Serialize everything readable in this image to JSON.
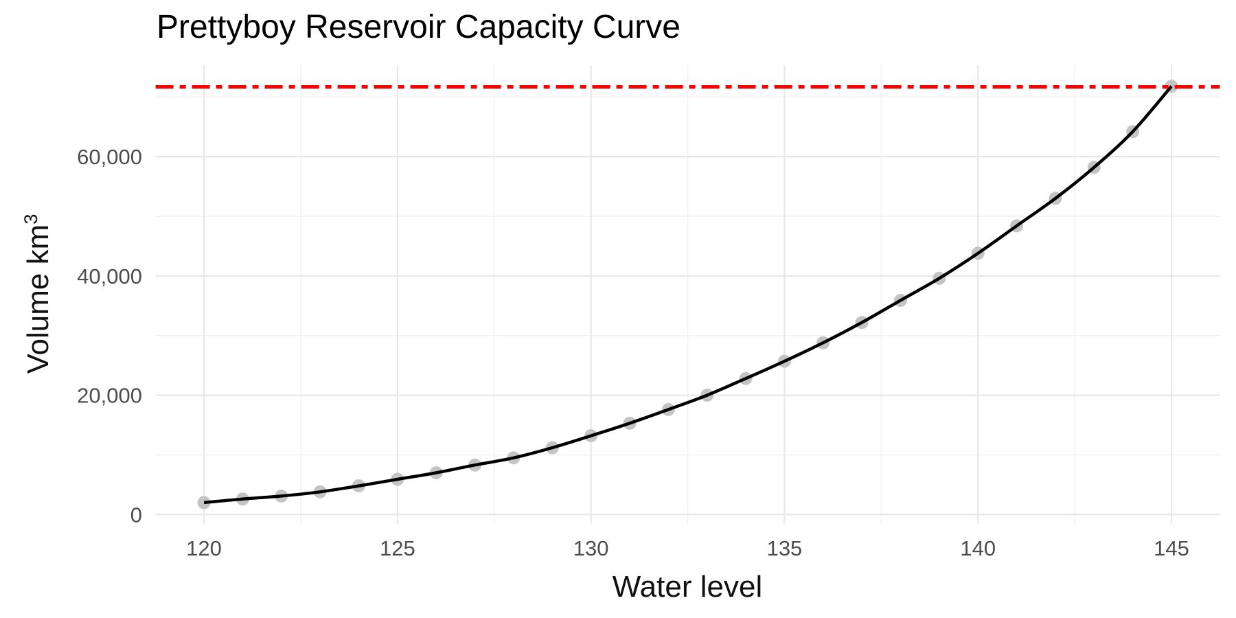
{
  "chart_data": {
    "type": "scatter",
    "title": "Prettyboy Reservoir Capacity Curve",
    "xlabel": "Water level",
    "ylabel": {
      "base": "Volume km",
      "exponent": "3"
    },
    "series": [
      {
        "name": "reservoir-volume-points",
        "x": [
          120,
          121,
          122,
          123,
          124,
          125,
          126,
          127,
          128,
          129,
          130,
          131,
          132,
          133,
          134,
          135,
          136,
          137,
          138,
          139,
          140,
          141,
          142,
          143,
          144,
          145
        ],
        "y": [
          2000,
          2600,
          3100,
          3800,
          4800,
          5900,
          7000,
          8300,
          9500,
          11200,
          13200,
          15300,
          17600,
          20000,
          22800,
          25700,
          28800,
          32200,
          35900,
          39600,
          43800,
          48400,
          53000,
          58200,
          64200,
          71800
        ]
      }
    ],
    "smooth_fit_line": true,
    "capacity_line": {
      "value": 71700,
      "style": "dash-dot"
    },
    "x_ticks": {
      "values": [
        120,
        125,
        130,
        135,
        140,
        145
      ],
      "labels": [
        "120",
        "125",
        "130",
        "135",
        "140",
        "145"
      ]
    },
    "y_ticks": {
      "values": [
        0,
        20000,
        40000,
        60000
      ],
      "labels": [
        "0",
        "20,000",
        "40,000",
        "60,000"
      ]
    },
    "x_minor": [
      122.5,
      127.5,
      132.5,
      137.5,
      142.5
    ],
    "y_minor": [
      10000,
      30000,
      50000,
      70000
    ],
    "xlim": [
      118.75,
      146.25
    ],
    "ylim": [
      -1533,
      75323
    ],
    "grid": "major+minor",
    "legend": false,
    "theme": "minimal-white",
    "colors": {
      "point": "#c4c4c4",
      "curve": "#000000",
      "capacity_line": "#ff0000",
      "grid_major": "#e7e7e7",
      "grid_minor": "#f2f2f2",
      "tick_text": "#4d4d4d",
      "title_text": "#000000",
      "axis_title_text": "#111111",
      "background": "#ffffff"
    }
  }
}
